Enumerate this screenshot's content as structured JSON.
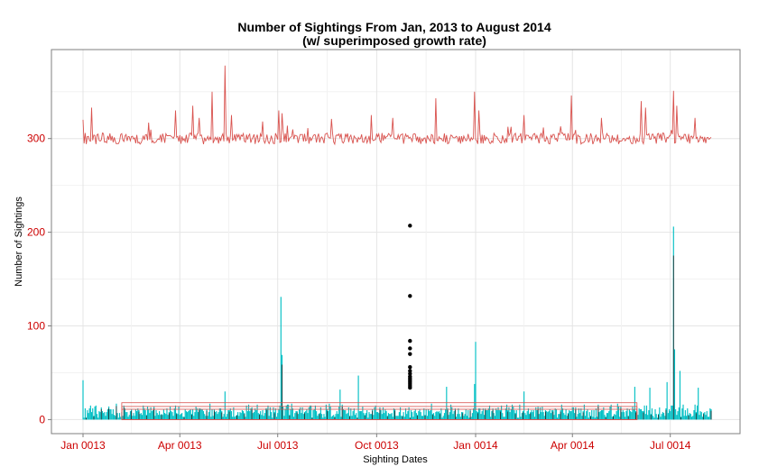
{
  "chart_data": {
    "type": "bar",
    "title_line1": "Number of Sightings From Jan, 2013 to August 2014",
    "title_line2": "(w/ superimposed growth rate)",
    "xlabel": "Sighting Dates",
    "ylabel": "Number of Sightings",
    "x_range": [
      "2013-01-01",
      "2014-08-08"
    ],
    "ylim": [
      -15,
      395
    ],
    "y_ticks": [
      0,
      100,
      200,
      300
    ],
    "y_tick_labels": [
      "0",
      "100",
      "200",
      "300"
    ],
    "x_ticks": [
      "2013-01-01",
      "2013-04-01",
      "2013-07-01",
      "2013-10-01",
      "2014-01-01",
      "2014-04-01",
      "2014-07-01"
    ],
    "x_tick_labels": [
      "Jan 0013",
      "Apr 0013",
      "Jul 0013",
      "Oct 0013",
      "Jan 0014",
      "Apr 0014",
      "Jul 0014"
    ],
    "grid": true,
    "series": [
      {
        "kind": "bar",
        "color": "#00bfc4",
        "baseline_level": 8,
        "typical_range": [
          2,
          18
        ],
        "spikes": [
          {
            "x": "2013-01-01",
            "y": 42
          },
          {
            "x": "2013-07-04",
            "y": 131
          },
          {
            "x": "2013-07-05",
            "y": 69
          },
          {
            "x": "2013-12-31",
            "y": 38
          },
          {
            "x": "2014-01-01",
            "y": 83
          },
          {
            "x": "2014-06-28",
            "y": 40
          },
          {
            "x": "2014-07-04",
            "y": 206
          },
          {
            "x": "2014-07-05",
            "y": 75
          },
          {
            "x": "2014-07-10",
            "y": 52
          },
          {
            "x": "2013-05-13",
            "y": 30
          },
          {
            "x": "2013-08-28",
            "y": 32
          },
          {
            "x": "2013-09-14",
            "y": 47
          },
          {
            "x": "2013-12-05",
            "y": 35
          },
          {
            "x": "2014-02-15",
            "y": 30
          },
          {
            "x": "2014-05-29",
            "y": 35
          },
          {
            "x": "2014-06-12",
            "y": 34
          },
          {
            "x": "2014-07-27",
            "y": 34
          }
        ]
      },
      {
        "kind": "line",
        "color": "#d9534f",
        "baseline_level": 300,
        "spikes": [
          {
            "x": "2013-01-01",
            "y": 320
          },
          {
            "x": "2013-01-09",
            "y": 333
          },
          {
            "x": "2013-03-28",
            "y": 330
          },
          {
            "x": "2013-04-13",
            "y": 335
          },
          {
            "x": "2013-04-19",
            "y": 322
          },
          {
            "x": "2013-05-01",
            "y": 350
          },
          {
            "x": "2013-05-13",
            "y": 378
          },
          {
            "x": "2013-05-19",
            "y": 325
          },
          {
            "x": "2013-07-02",
            "y": 330
          },
          {
            "x": "2013-07-05",
            "y": 327
          },
          {
            "x": "2013-08-20",
            "y": 321
          },
          {
            "x": "2013-09-26",
            "y": 325
          },
          {
            "x": "2013-10-16",
            "y": 322
          },
          {
            "x": "2013-11-25",
            "y": 343
          },
          {
            "x": "2013-12-31",
            "y": 350
          },
          {
            "x": "2014-01-04",
            "y": 330
          },
          {
            "x": "2014-02-15",
            "y": 325
          },
          {
            "x": "2014-03-31",
            "y": 346
          },
          {
            "x": "2014-04-28",
            "y": 322
          },
          {
            "x": "2014-06-04",
            "y": 340
          },
          {
            "x": "2014-06-08",
            "y": 333
          },
          {
            "x": "2014-07-04",
            "y": 351
          },
          {
            "x": "2014-07-07",
            "y": 335
          },
          {
            "x": "2014-07-24",
            "y": 322
          }
        ]
      },
      {
        "kind": "points",
        "color": "#000000",
        "x": "2013-11-01",
        "values": [
          207,
          132,
          84,
          76,
          70,
          56,
          52,
          49,
          46,
          44,
          42,
          40,
          38,
          36,
          34
        ]
      },
      {
        "kind": "band",
        "color": "#d9534f",
        "x_start": "2013-02-06",
        "x_end": "2014-05-31",
        "values": [
          18,
          14,
          11
        ]
      }
    ]
  }
}
